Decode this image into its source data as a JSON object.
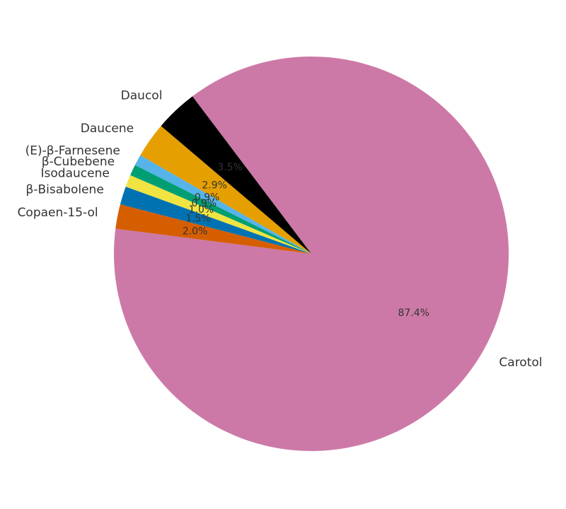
{
  "chart_data": {
    "type": "pie",
    "categories": [
      "Carotol",
      "Daucol",
      "Daucene",
      "(E)-β-Farnesene",
      "β-Cubebene",
      "Isodaucene",
      "β-Bisabolene",
      "Copaen-15-ol"
    ],
    "values": [
      87.4,
      3.5,
      2.9,
      0.9,
      0.9,
      1.0,
      1.5,
      2.0
    ],
    "value_labels": [
      "87.4%",
      "3.5%",
      "2.9%",
      "0.9%",
      "0.9%",
      "1.0%",
      "1.5%",
      "2.0%"
    ],
    "colors": [
      "#cc79a7",
      "#000000",
      "#e69f00",
      "#56b4e9",
      "#009e73",
      "#f0e442",
      "#0072b2",
      "#d55e00"
    ]
  }
}
